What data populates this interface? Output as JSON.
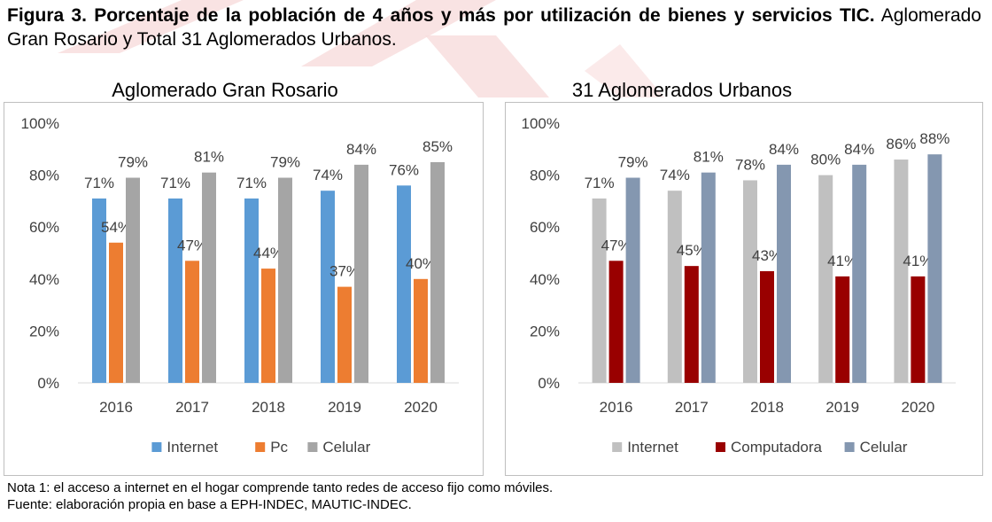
{
  "figure": {
    "title_bold": "Figura 3. Porcentaje de la población de 4 años y más por utilización de bienes y servicios TIC.",
    "title_rest": " Aglomerado Gran Rosario y Total 31 Aglomerados Urbanos."
  },
  "notes": {
    "note1": "Nota 1: el acceso a internet en el hogar comprende tanto redes de acceso fijo como móviles.",
    "source": "Fuente: elaboración propia en base a EPH-INDEC, MAUTIC-INDEC."
  },
  "chart_data": [
    {
      "type": "bar",
      "title": "Aglomerado Gran Rosario",
      "categories": [
        "2016",
        "2017",
        "2018",
        "2019",
        "2020"
      ],
      "ylim": [
        0,
        100
      ],
      "yticks": [
        "0%",
        "20%",
        "40%",
        "60%",
        "80%",
        "100%"
      ],
      "ytick_values": [
        0,
        20,
        40,
        60,
        80,
        100
      ],
      "grid": false,
      "legend": "bottom",
      "series": [
        {
          "name": "Internet",
          "color": "#5b9bd5",
          "values": [
            71,
            71,
            71,
            74,
            76
          ],
          "labels": [
            "71%",
            "71%",
            "71%",
            "74%",
            "76%"
          ]
        },
        {
          "name": "Pc",
          "color": "#ed7d31",
          "values": [
            54,
            47,
            44,
            37,
            40
          ],
          "labels": [
            "54%",
            "47%",
            "44%",
            "37%",
            "40%"
          ]
        },
        {
          "name": "Celular",
          "color": "#a5a5a5",
          "values": [
            79,
            81,
            79,
            84,
            85
          ],
          "labels": [
            "79%",
            "81%",
            "79%",
            "84%",
            "85%"
          ]
        }
      ]
    },
    {
      "type": "bar",
      "title": "31 Aglomerados Urbanos",
      "categories": [
        "2016",
        "2017",
        "2018",
        "2019",
        "2020"
      ],
      "ylim": [
        0,
        100
      ],
      "yticks": [
        "0%",
        "20%",
        "40%",
        "60%",
        "80%",
        "100%"
      ],
      "ytick_values": [
        0,
        20,
        40,
        60,
        80,
        100
      ],
      "grid": false,
      "legend": "bottom",
      "series": [
        {
          "name": "Internet",
          "color": "#c0c0c0",
          "values": [
            71,
            74,
            78,
            80,
            86
          ],
          "labels": [
            "71%",
            "74%",
            "78%",
            "80%",
            "86%"
          ]
        },
        {
          "name": "Computadora",
          "color": "#990000",
          "values": [
            47,
            45,
            43,
            41,
            41
          ],
          "labels": [
            "47%",
            "45%",
            "43%",
            "41%",
            "41%"
          ]
        },
        {
          "name": "Celular",
          "color": "#8497b0",
          "values": [
            79,
            81,
            84,
            84,
            88
          ],
          "labels": [
            "79%",
            "81%",
            "84%",
            "84%",
            "88%"
          ]
        }
      ]
    }
  ]
}
